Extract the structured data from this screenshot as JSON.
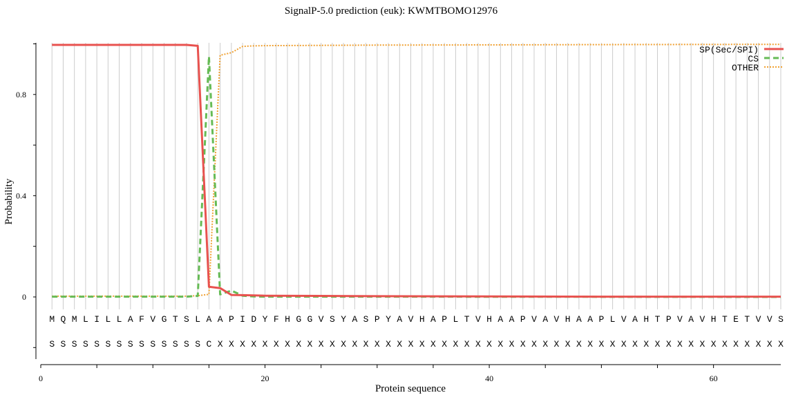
{
  "chart_data": {
    "type": "line",
    "title": "SignalP-5.0 prediction (euk):  KWMTBOMO12976",
    "xlabel": "Protein sequence",
    "ylabel": "Probability",
    "xlim": [
      0,
      66
    ],
    "ylim": [
      -0.25,
      1.01
    ],
    "x_ticks": [
      0,
      20,
      40,
      60
    ],
    "y_ticks": [
      0,
      0.4,
      0.8
    ],
    "x_tick_labels": [
      "0",
      "20",
      "40",
      "60"
    ],
    "y_tick_labels": [
      "0",
      "0.4",
      "0.8"
    ],
    "legend_position": "top-right",
    "sequence": [
      "M",
      "Q",
      "M",
      "L",
      "I",
      "L",
      "L",
      "A",
      "F",
      "V",
      "G",
      "T",
      "S",
      "L",
      "A",
      "A",
      "P",
      "I",
      "D",
      "Y",
      "F",
      "H",
      "G",
      "G",
      "V",
      "S",
      "Y",
      "A",
      "S",
      "P",
      "Y",
      "A",
      "V",
      "H",
      "A",
      "P",
      "L",
      "T",
      "V",
      "H",
      "A",
      "A",
      "P",
      "V",
      "A",
      "V",
      "H",
      "A",
      "A",
      "P",
      "L",
      "V",
      "A",
      "H",
      "T",
      "P",
      "V",
      "A",
      "V",
      "H",
      "T",
      "E",
      "T",
      "V",
      "V",
      "S"
    ],
    "annotation": [
      "S",
      "S",
      "S",
      "S",
      "S",
      "S",
      "S",
      "S",
      "S",
      "S",
      "S",
      "S",
      "S",
      "S",
      "C",
      "X",
      "X",
      "X",
      "X",
      "X",
      "X",
      "X",
      "X",
      "X",
      "X",
      "X",
      "X",
      "X",
      "X",
      "X",
      "X",
      "X",
      "X",
      "X",
      "X",
      "X",
      "X",
      "X",
      "X",
      "X",
      "X",
      "X",
      "X",
      "X",
      "X",
      "X",
      "X",
      "X",
      "X",
      "X",
      "X",
      "X",
      "X",
      "X",
      "X",
      "X",
      "X",
      "X",
      "X",
      "X",
      "X",
      "X",
      "X",
      "X",
      "X",
      "X"
    ],
    "series": [
      {
        "name": "SP(Sec/SPI)",
        "color": "#e8524f",
        "style": "solid",
        "points": [
          [
            1,
            0.996
          ],
          [
            2,
            0.996
          ],
          [
            3,
            0.996
          ],
          [
            4,
            0.996
          ],
          [
            5,
            0.996
          ],
          [
            6,
            0.996
          ],
          [
            7,
            0.996
          ],
          [
            8,
            0.996
          ],
          [
            9,
            0.996
          ],
          [
            10,
            0.996
          ],
          [
            11,
            0.996
          ],
          [
            12,
            0.996
          ],
          [
            13,
            0.996
          ],
          [
            14,
            0.992
          ],
          [
            15,
            0.04
          ],
          [
            16,
            0.035
          ],
          [
            17,
            0.008
          ],
          [
            18,
            0.007
          ],
          [
            19,
            0.006
          ],
          [
            20,
            0.005
          ],
          [
            25,
            0.004
          ],
          [
            30,
            0.003
          ],
          [
            40,
            0.002
          ],
          [
            50,
            0.001
          ],
          [
            66,
            0.001
          ]
        ]
      },
      {
        "name": "CS",
        "color": "#66bb55",
        "style": "dashed",
        "points": [
          [
            1,
            0.001
          ],
          [
            2,
            0.001
          ],
          [
            3,
            0.001
          ],
          [
            4,
            0.001
          ],
          [
            5,
            0.001
          ],
          [
            6,
            0.001
          ],
          [
            7,
            0.001
          ],
          [
            8,
            0.001
          ],
          [
            9,
            0.001
          ],
          [
            10,
            0.001
          ],
          [
            11,
            0.001
          ],
          [
            12,
            0.001
          ],
          [
            13,
            0.001
          ],
          [
            14,
            0.004
          ],
          [
            15,
            0.95
          ],
          [
            16,
            0.01
          ],
          [
            17,
            0.025
          ],
          [
            18,
            0.005
          ],
          [
            19,
            0.002
          ],
          [
            20,
            0.001
          ],
          [
            30,
            0.001
          ],
          [
            66,
            0.0
          ]
        ]
      },
      {
        "name": "OTHER",
        "color": "#f0a030",
        "style": "dotted",
        "points": [
          [
            1,
            0.003
          ],
          [
            2,
            0.003
          ],
          [
            3,
            0.003
          ],
          [
            4,
            0.003
          ],
          [
            5,
            0.003
          ],
          [
            6,
            0.003
          ],
          [
            7,
            0.003
          ],
          [
            8,
            0.003
          ],
          [
            9,
            0.003
          ],
          [
            10,
            0.003
          ],
          [
            11,
            0.003
          ],
          [
            12,
            0.003
          ],
          [
            13,
            0.003
          ],
          [
            14,
            0.005
          ],
          [
            15,
            0.01
          ],
          [
            16,
            0.955
          ],
          [
            17,
            0.965
          ],
          [
            18,
            0.99
          ],
          [
            19,
            0.992
          ],
          [
            20,
            0.993
          ],
          [
            30,
            0.995
          ],
          [
            40,
            0.996
          ],
          [
            50,
            0.997
          ],
          [
            66,
            0.998
          ]
        ]
      }
    ]
  }
}
